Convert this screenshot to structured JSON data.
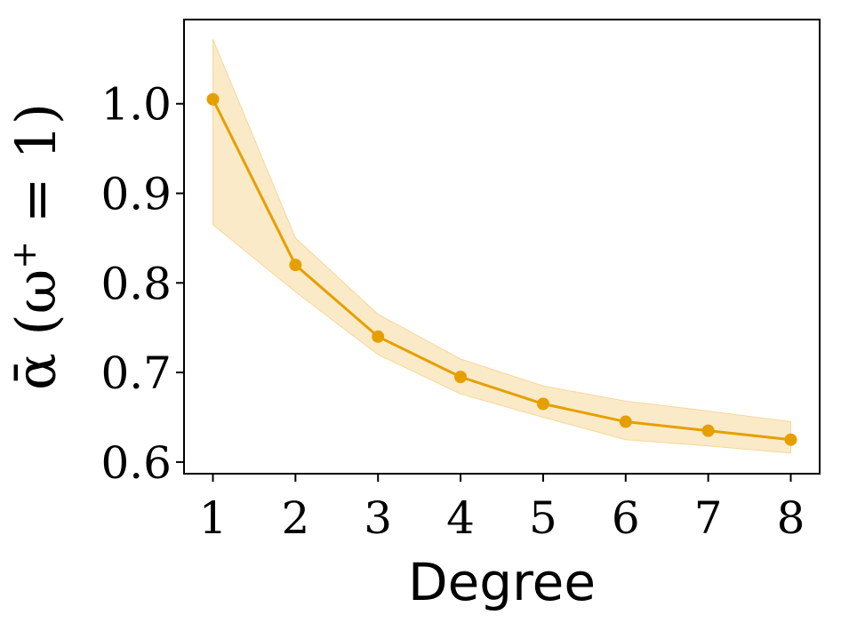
{
  "chart_data": {
    "type": "line",
    "title": "",
    "xlabel": "Degree",
    "ylabel_parts": {
      "symbol": "ᾱ",
      "open": " (ω",
      "sup": "+",
      "close": " = 1)"
    },
    "xlim": [
      0.65,
      8.35
    ],
    "ylim": [
      0.587,
      1.094
    ],
    "xticks": [
      1,
      2,
      3,
      4,
      5,
      6,
      7,
      8
    ],
    "xtick_labels": [
      "1",
      "2",
      "3",
      "4",
      "5",
      "6",
      "7",
      "8"
    ],
    "yticks": [
      0.6,
      0.7,
      0.8,
      0.9,
      1.0
    ],
    "ytick_labels": [
      "0.6",
      "0.7",
      "0.8",
      "0.9",
      "1.0"
    ],
    "grid": false,
    "legend": "none",
    "series": [
      {
        "x": [
          1,
          2,
          3,
          4,
          5,
          6,
          7,
          8
        ],
        "values": [
          1.005,
          0.82,
          0.74,
          0.695,
          0.665,
          0.645,
          0.635,
          0.625
        ],
        "lower": [
          0.865,
          0.79,
          0.72,
          0.676,
          0.65,
          0.625,
          0.618,
          0.61
        ],
        "upper": [
          1.072,
          0.85,
          0.765,
          0.715,
          0.685,
          0.668,
          0.657,
          0.645
        ],
        "color": "#E69F00",
        "band_color": "#F5D89A"
      }
    ]
  }
}
